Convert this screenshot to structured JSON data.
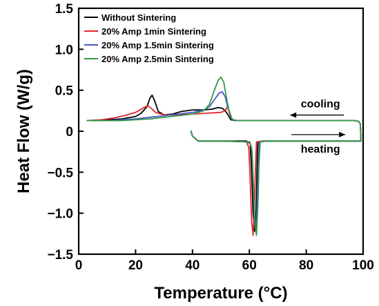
{
  "chart_data": {
    "type": "line",
    "xlabel": "Temperature (°C)",
    "ylabel": "Heat Flow (W/g)",
    "xlim": [
      0,
      100
    ],
    "ylim": [
      -1.5,
      1.5
    ],
    "xticks": [
      0,
      20,
      40,
      60,
      80,
      100
    ],
    "yticks": [
      -1.5,
      -1.0,
      -0.5,
      0,
      0.5,
      1.0,
      1.5
    ],
    "ytick_labels": [
      "−1.5",
      "−1.0",
      "−0.5",
      "0",
      "0.5",
      "1.0",
      "1.5"
    ],
    "xtick_labels": [
      "0",
      "20",
      "40",
      "60",
      "80",
      "100"
    ],
    "grid": false,
    "legend": "top-left",
    "annotations": [
      {
        "text": "cooling",
        "arrow": "left",
        "x": 85,
        "y": 0.29
      },
      {
        "text": "heating",
        "arrow": "right",
        "x": 85,
        "y": -0.26
      }
    ],
    "series": [
      {
        "name": "Without Sintering",
        "color": "#000000",
        "cooling": [
          [
            3,
            0.13
          ],
          [
            10,
            0.14
          ],
          [
            15,
            0.15
          ],
          [
            20,
            0.18
          ],
          [
            22,
            0.22
          ],
          [
            24,
            0.3
          ],
          [
            25,
            0.4
          ],
          [
            25.8,
            0.44
          ],
          [
            26.6,
            0.38
          ],
          [
            28,
            0.24
          ],
          [
            30,
            0.2
          ],
          [
            33,
            0.21
          ],
          [
            36,
            0.24
          ],
          [
            40,
            0.26
          ],
          [
            44,
            0.26
          ],
          [
            47,
            0.27
          ],
          [
            49,
            0.29
          ],
          [
            50.5,
            0.28
          ],
          [
            51.5,
            0.25
          ],
          [
            52.5,
            0.2
          ],
          [
            53.5,
            0.14
          ],
          [
            55,
            0.13
          ],
          [
            70,
            0.13
          ],
          [
            90,
            0.13
          ],
          [
            97,
            0.13
          ],
          [
            98.5,
            0.12
          ],
          [
            99,
            0.09
          ],
          [
            99.2,
            -0.05
          ],
          [
            99.2,
            -0.12
          ]
        ],
        "heating": [
          [
            99.2,
            -0.12
          ],
          [
            80,
            -0.12
          ],
          [
            65,
            -0.12
          ],
          [
            63,
            -0.13
          ],
          [
            62.8,
            -0.3
          ],
          [
            62.5,
            -0.8
          ],
          [
            62.2,
            -1.15
          ],
          [
            61.8,
            -1.22
          ],
          [
            61.3,
            -1.0
          ],
          [
            60.8,
            -0.5
          ],
          [
            60.3,
            -0.15
          ],
          [
            59,
            -0.12
          ],
          [
            50,
            -0.12
          ],
          [
            42,
            -0.12
          ],
          [
            40,
            -0.06
          ],
          [
            39.5,
            0.0
          ]
        ]
      },
      {
        "name": "20% Amp 1min Sintering",
        "color": "#e8232b",
        "cooling": [
          [
            3,
            0.13
          ],
          [
            8,
            0.14
          ],
          [
            12,
            0.16
          ],
          [
            16,
            0.19
          ],
          [
            20,
            0.23
          ],
          [
            23,
            0.29
          ],
          [
            24.3,
            0.31
          ],
          [
            25.5,
            0.28
          ],
          [
            27,
            0.23
          ],
          [
            30,
            0.2
          ],
          [
            35,
            0.2
          ],
          [
            40,
            0.21
          ],
          [
            45,
            0.22
          ],
          [
            50,
            0.23
          ],
          [
            51.5,
            0.25
          ],
          [
            52.3,
            0.3
          ],
          [
            53,
            0.24
          ],
          [
            54,
            0.14
          ],
          [
            56,
            0.13
          ],
          [
            70,
            0.13
          ],
          [
            90,
            0.13
          ],
          [
            97,
            0.13
          ],
          [
            98.5,
            0.12
          ],
          [
            99,
            0.09
          ],
          [
            99.2,
            -0.05
          ],
          [
            99.2,
            -0.12
          ]
        ],
        "heating": [
          [
            99.2,
            -0.12
          ],
          [
            80,
            -0.12
          ],
          [
            65,
            -0.12
          ],
          [
            62.5,
            -0.13
          ],
          [
            62.2,
            -0.4
          ],
          [
            61.8,
            -0.9
          ],
          [
            61.3,
            -1.27
          ],
          [
            60.8,
            -1.1
          ],
          [
            60.3,
            -0.6
          ],
          [
            59.8,
            -0.2
          ],
          [
            59,
            -0.13
          ],
          [
            50,
            -0.12
          ],
          [
            42,
            -0.12
          ],
          [
            40,
            -0.06
          ],
          [
            39.5,
            0.0
          ]
        ]
      },
      {
        "name": "20% Amp 1.5min Sintering",
        "color": "#4a56c4",
        "cooling": [
          [
            3,
            0.13
          ],
          [
            10,
            0.13
          ],
          [
            15,
            0.14
          ],
          [
            20,
            0.15
          ],
          [
            25,
            0.17
          ],
          [
            30,
            0.19
          ],
          [
            35,
            0.21
          ],
          [
            40,
            0.23
          ],
          [
            44,
            0.26
          ],
          [
            46,
            0.3
          ],
          [
            48,
            0.4
          ],
          [
            49.5,
            0.47
          ],
          [
            50.5,
            0.48
          ],
          [
            51.5,
            0.42
          ],
          [
            52.5,
            0.28
          ],
          [
            53.5,
            0.16
          ],
          [
            55,
            0.13
          ],
          [
            70,
            0.13
          ],
          [
            90,
            0.13
          ],
          [
            97,
            0.13
          ],
          [
            98.5,
            0.12
          ],
          [
            99,
            0.09
          ],
          [
            99.2,
            -0.05
          ],
          [
            99.2,
            -0.12
          ]
        ],
        "heating": [
          [
            99.2,
            -0.12
          ],
          [
            80,
            -0.12
          ],
          [
            66,
            -0.12
          ],
          [
            63.5,
            -0.13
          ],
          [
            63.2,
            -0.35
          ],
          [
            62.8,
            -0.85
          ],
          [
            62.3,
            -1.2
          ],
          [
            61.8,
            -1.1
          ],
          [
            61.3,
            -0.6
          ],
          [
            60.8,
            -0.2
          ],
          [
            60,
            -0.13
          ],
          [
            50,
            -0.12
          ],
          [
            42,
            -0.12
          ],
          [
            40,
            -0.06
          ],
          [
            39.5,
            0.0
          ]
        ]
      },
      {
        "name": "20% Amp 2.5min Sintering",
        "color": "#2e9a48",
        "cooling": [
          [
            3,
            0.13
          ],
          [
            10,
            0.13
          ],
          [
            15,
            0.13
          ],
          [
            20,
            0.14
          ],
          [
            25,
            0.15
          ],
          [
            30,
            0.17
          ],
          [
            35,
            0.19
          ],
          [
            40,
            0.21
          ],
          [
            44,
            0.25
          ],
          [
            46,
            0.33
          ],
          [
            47.5,
            0.48
          ],
          [
            49,
            0.62
          ],
          [
            50,
            0.66
          ],
          [
            51,
            0.6
          ],
          [
            52,
            0.4
          ],
          [
            53,
            0.22
          ],
          [
            54,
            0.14
          ],
          [
            56,
            0.13
          ],
          [
            70,
            0.13
          ],
          [
            90,
            0.13
          ],
          [
            97,
            0.13
          ],
          [
            98.5,
            0.12
          ],
          [
            99,
            0.09
          ],
          [
            99.2,
            -0.05
          ],
          [
            99.2,
            -0.12
          ]
        ],
        "heating": [
          [
            99.2,
            -0.12
          ],
          [
            80,
            -0.12
          ],
          [
            66,
            -0.12
          ],
          [
            63.8,
            -0.13
          ],
          [
            63.4,
            -0.4
          ],
          [
            63,
            -0.9
          ],
          [
            62.5,
            -1.27
          ],
          [
            62,
            -1.15
          ],
          [
            61.5,
            -0.7
          ],
          [
            61,
            -0.25
          ],
          [
            60.2,
            -0.13
          ],
          [
            50,
            -0.12
          ],
          [
            42,
            -0.12
          ],
          [
            40,
            -0.06
          ],
          [
            39.5,
            0.0
          ]
        ]
      }
    ]
  }
}
